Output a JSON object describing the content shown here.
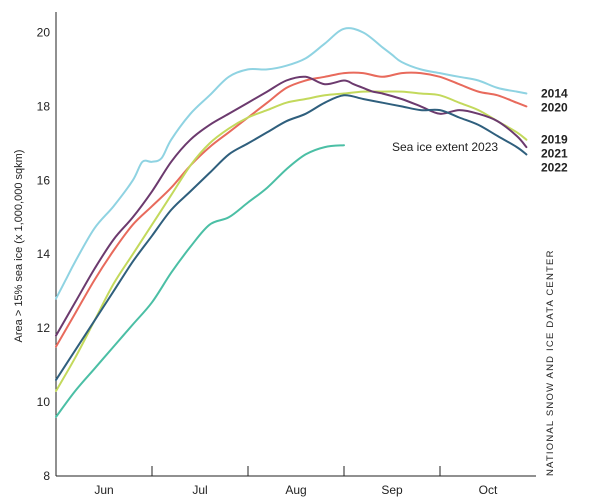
{
  "chart_data": {
    "type": "line",
    "title": "",
    "xlabel": "",
    "ylabel": "Area > 15% sea ice (x 1,000,000 sqkm)",
    "ylim": [
      8,
      20.5
    ],
    "xlim": [
      0,
      5
    ],
    "y_ticks": [
      8,
      10,
      12,
      14,
      16,
      18,
      20
    ],
    "x_ticks": [
      {
        "label": "Jun",
        "pos": 0.5
      },
      {
        "label": "Jul",
        "pos": 1.5
      },
      {
        "label": "Aug",
        "pos": 2.5
      },
      {
        "label": "Sep",
        "pos": 3.5
      },
      {
        "label": "Oct",
        "pos": 4.5
      }
    ],
    "month_boundaries": [
      1,
      2,
      3,
      4
    ],
    "grid": false,
    "legend": "right-end labels",
    "source_credit": "NATIONAL SNOW AND ICE DATA CENTER",
    "annotation": "Sea ice extent 2023",
    "series": [
      {
        "name": "2014",
        "color": "#8fd3e2",
        "x": [
          0,
          0.1,
          0.2,
          0.4,
          0.6,
          0.8,
          0.9,
          1.0,
          1.1,
          1.2,
          1.4,
          1.6,
          1.8,
          2.0,
          2.2,
          2.4,
          2.6,
          2.8,
          3.0,
          3.2,
          3.4,
          3.5,
          3.6,
          3.8,
          4.0,
          4.2,
          4.4,
          4.6,
          4.8,
          4.9
        ],
        "y": [
          12.8,
          13.3,
          13.8,
          14.7,
          15.3,
          16.0,
          16.5,
          16.5,
          16.6,
          17.1,
          17.8,
          18.3,
          18.8,
          19.0,
          19.0,
          19.1,
          19.3,
          19.7,
          20.1,
          20.0,
          19.6,
          19.4,
          19.2,
          19.0,
          18.9,
          18.8,
          18.7,
          18.5,
          18.4,
          18.35
        ]
      },
      {
        "name": "2020",
        "color": "#e86a5c",
        "x": [
          0,
          0.2,
          0.4,
          0.6,
          0.8,
          1.0,
          1.2,
          1.4,
          1.6,
          1.8,
          2.0,
          2.2,
          2.4,
          2.6,
          2.8,
          3.0,
          3.2,
          3.4,
          3.6,
          3.8,
          4.0,
          4.2,
          4.4,
          4.6,
          4.8,
          4.9
        ],
        "y": [
          11.5,
          12.4,
          13.3,
          14.1,
          14.8,
          15.3,
          15.8,
          16.4,
          16.9,
          17.3,
          17.7,
          18.1,
          18.5,
          18.7,
          18.8,
          18.9,
          18.9,
          18.8,
          18.9,
          18.9,
          18.8,
          18.6,
          18.4,
          18.3,
          18.1,
          18.0
        ]
      },
      {
        "name": "2019",
        "color": "#c3d95c",
        "x": [
          0,
          0.2,
          0.4,
          0.6,
          0.8,
          1.0,
          1.2,
          1.4,
          1.6,
          1.8,
          2.0,
          2.2,
          2.4,
          2.6,
          2.8,
          3.0,
          3.2,
          3.4,
          3.6,
          3.8,
          4.0,
          4.2,
          4.4,
          4.6,
          4.8,
          4.9
        ],
        "y": [
          10.3,
          11.2,
          12.2,
          13.2,
          14.0,
          14.8,
          15.6,
          16.4,
          17.0,
          17.4,
          17.7,
          17.9,
          18.1,
          18.2,
          18.3,
          18.35,
          18.4,
          18.4,
          18.4,
          18.35,
          18.3,
          18.1,
          17.9,
          17.6,
          17.3,
          17.1
        ]
      },
      {
        "name": "2021",
        "color": "#6c3a6e",
        "x": [
          0,
          0.2,
          0.4,
          0.6,
          0.8,
          1.0,
          1.2,
          1.4,
          1.6,
          1.8,
          2.0,
          2.2,
          2.4,
          2.6,
          2.8,
          3.0,
          3.1,
          3.2,
          3.3,
          3.4,
          3.6,
          3.8,
          4.0,
          4.2,
          4.4,
          4.6,
          4.8,
          4.9
        ],
        "y": [
          11.8,
          12.7,
          13.6,
          14.4,
          15.0,
          15.7,
          16.5,
          17.1,
          17.5,
          17.8,
          18.1,
          18.4,
          18.7,
          18.8,
          18.6,
          18.7,
          18.6,
          18.5,
          18.4,
          18.35,
          18.2,
          18.0,
          17.8,
          17.9,
          17.8,
          17.6,
          17.2,
          16.9
        ]
      },
      {
        "name": "2022",
        "color": "#2f5f7d",
        "x": [
          0,
          0.2,
          0.4,
          0.6,
          0.8,
          1.0,
          1.2,
          1.4,
          1.6,
          1.8,
          2.0,
          2.2,
          2.4,
          2.6,
          2.8,
          3.0,
          3.2,
          3.4,
          3.6,
          3.8,
          4.0,
          4.2,
          4.4,
          4.6,
          4.8,
          4.9
        ],
        "y": [
          10.6,
          11.4,
          12.2,
          13.0,
          13.8,
          14.5,
          15.2,
          15.7,
          16.2,
          16.7,
          17.0,
          17.3,
          17.6,
          17.8,
          18.1,
          18.3,
          18.2,
          18.1,
          18.0,
          17.9,
          17.9,
          17.7,
          17.5,
          17.2,
          16.9,
          16.7
        ]
      },
      {
        "name": "2023",
        "color": "#4bbfa5",
        "x": [
          0,
          0.2,
          0.4,
          0.6,
          0.8,
          1.0,
          1.2,
          1.4,
          1.6,
          1.8,
          2.0,
          2.2,
          2.4,
          2.6,
          2.8,
          3.0
        ],
        "y": [
          9.6,
          10.3,
          10.9,
          11.5,
          12.1,
          12.7,
          13.5,
          14.2,
          14.8,
          15.0,
          15.4,
          15.8,
          16.3,
          16.7,
          16.9,
          16.95
        ]
      }
    ]
  }
}
